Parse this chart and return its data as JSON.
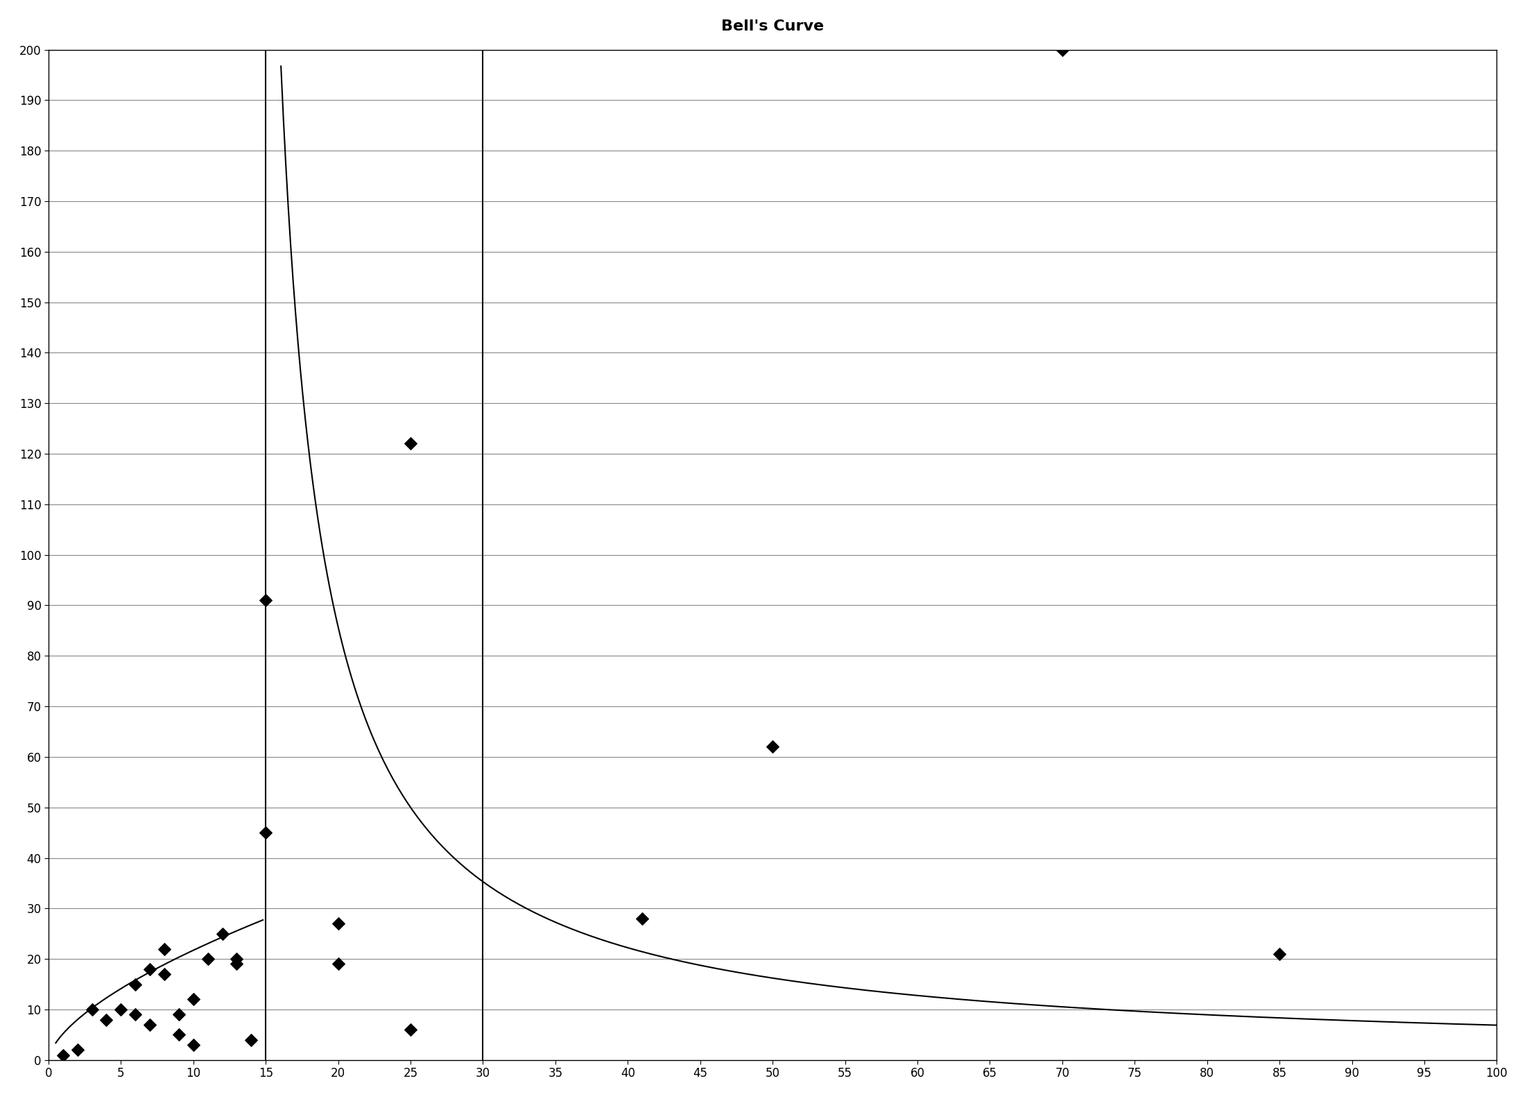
{
  "title": "Bell's Curve",
  "title_fontsize": 16,
  "title_fontweight": "bold",
  "xlim": [
    0,
    100
  ],
  "ylim": [
    0,
    200
  ],
  "xticks": [
    0,
    5,
    10,
    15,
    20,
    25,
    30,
    35,
    40,
    45,
    50,
    55,
    60,
    65,
    70,
    75,
    80,
    85,
    90,
    95,
    100
  ],
  "yticks": [
    0,
    10,
    20,
    30,
    40,
    50,
    60,
    70,
    80,
    90,
    100,
    110,
    120,
    130,
    140,
    150,
    160,
    170,
    180,
    190,
    200
  ],
  "scatter_x": [
    1,
    2,
    3,
    4,
    5,
    6,
    6,
    7,
    7,
    8,
    8,
    9,
    9,
    10,
    10,
    11,
    12,
    13,
    13,
    14,
    15,
    15,
    20,
    20,
    25,
    25,
    41,
    50,
    70,
    85
  ],
  "scatter_y": [
    1,
    2,
    10,
    8,
    10,
    9,
    15,
    18,
    7,
    17,
    22,
    5,
    9,
    3,
    12,
    20,
    25,
    20,
    19,
    4,
    45,
    91,
    19,
    27,
    122,
    6,
    28,
    62,
    200,
    21
  ],
  "vline1_x": 15,
  "vline2_x": 30,
  "curve_color": "#000000",
  "scatter_color": "#000000",
  "vline_color": "#000000",
  "background_color": "#ffffff",
  "grid_color": "#888888",
  "figsize": [
    22.02,
    15.84
  ],
  "dpi": 100,
  "curve_A": 1800,
  "curve_x0": 15,
  "curve_x_start": 15.5,
  "curve_x_end": 100
}
